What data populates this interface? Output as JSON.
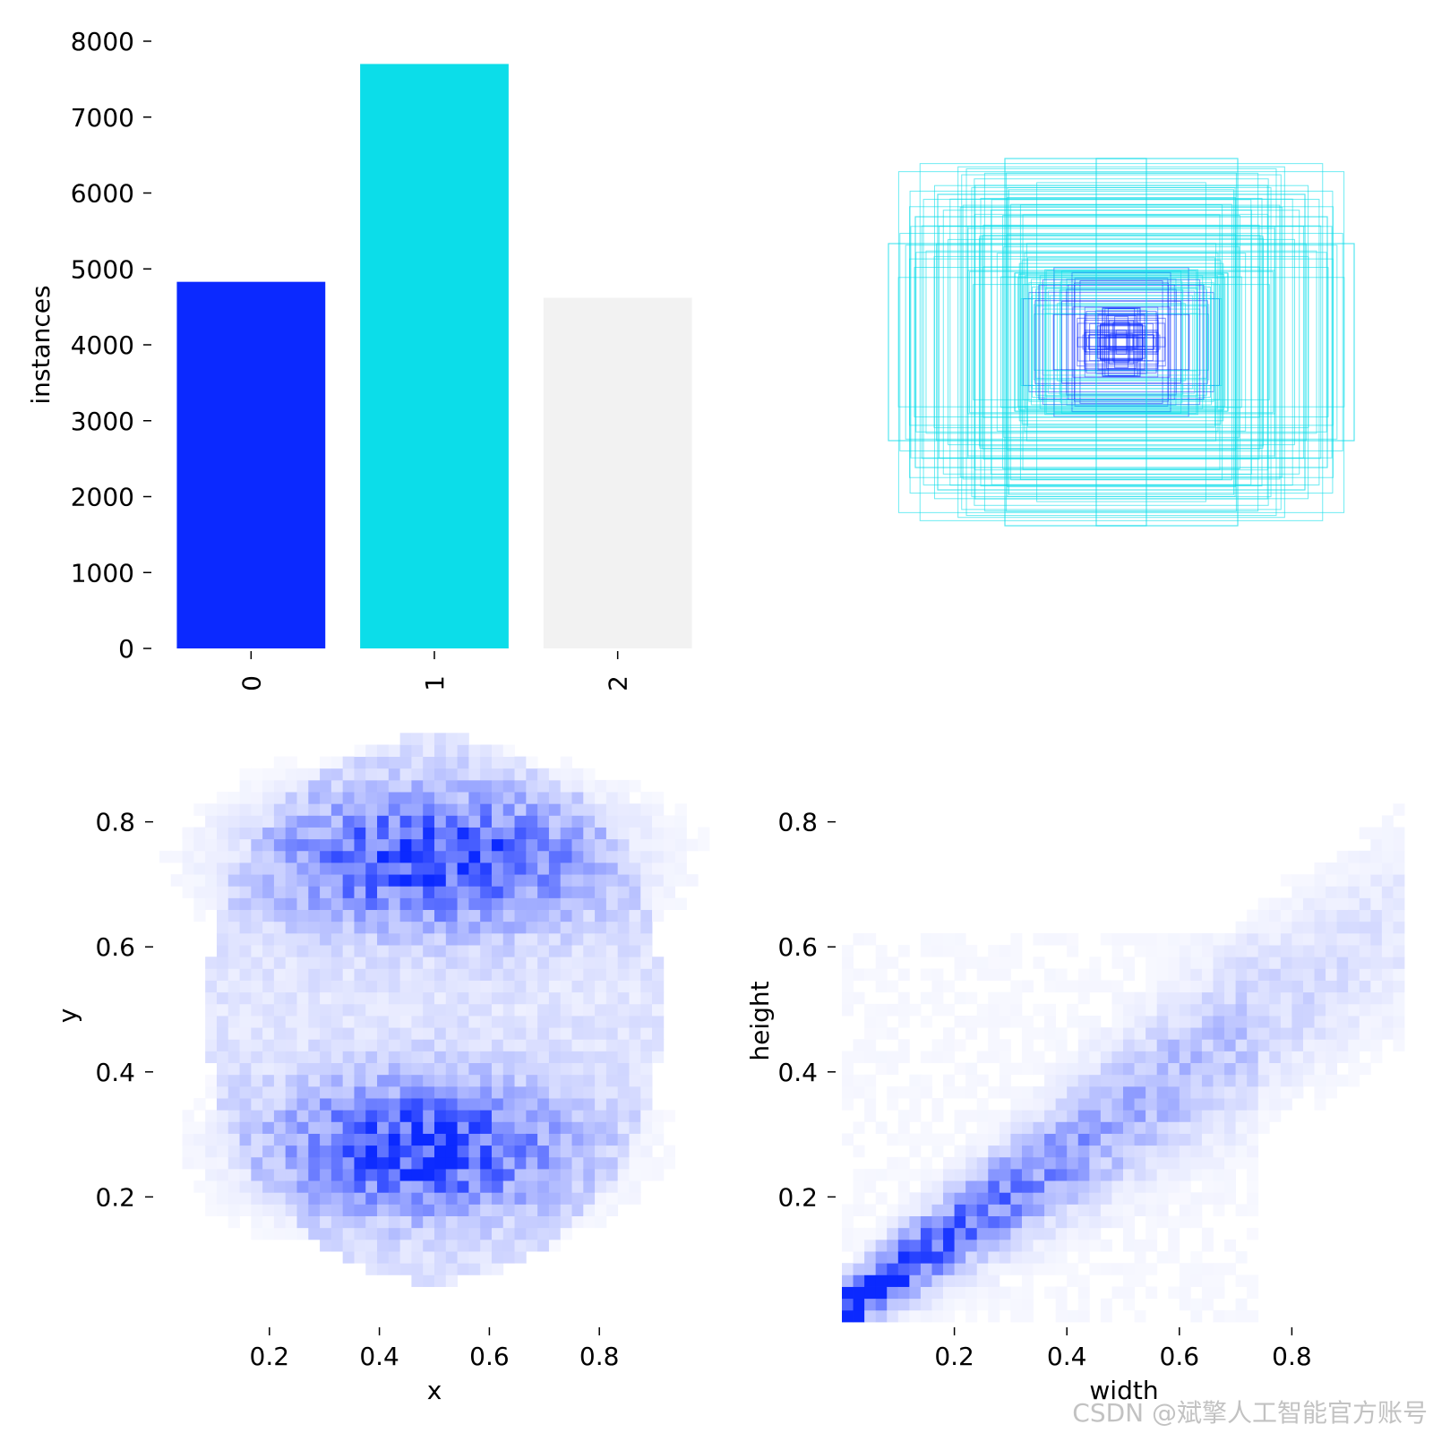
{
  "chart_data": [
    {
      "type": "bar",
      "categories": [
        "0",
        "1",
        "2"
      ],
      "values": [
        4830,
        7700,
        4620
      ],
      "colors": [
        "#0b29ff",
        "#0cdde9",
        "#f2f2f2"
      ],
      "ylabel": "instances",
      "yticks": [
        "0",
        "1000",
        "2000",
        "3000",
        "4000",
        "5000",
        "6000",
        "7000",
        "8000"
      ],
      "ylim": [
        0,
        8000
      ],
      "grid": false
    },
    {
      "type": "other",
      "description": "overlaid bounding-box rectangles centred at one point, cyan outlines with blue small boxes",
      "colors": [
        "#0cdde9",
        "#0b29ff"
      ]
    },
    {
      "type": "heatmap",
      "xlabel": "x",
      "ylabel": "y",
      "xticks": [
        "0.2",
        "0.4",
        "0.6",
        "0.8"
      ],
      "yticks": [
        "0.2",
        "0.4",
        "0.6",
        "0.8"
      ],
      "xlim": [
        0.0,
        1.0
      ],
      "ylim": [
        0.0,
        0.98
      ],
      "color": "#0b29ff",
      "density_centers": [
        {
          "x": 0.5,
          "y": 0.74,
          "spread_x": 0.22,
          "spread_y": 0.08
        },
        {
          "x": 0.48,
          "y": 0.28,
          "spread_x": 0.2,
          "spread_y": 0.08
        }
      ]
    },
    {
      "type": "heatmap",
      "xlabel": "width",
      "ylabel": "height",
      "xticks": [
        "0.2",
        "0.4",
        "0.6",
        "0.8"
      ],
      "yticks": [
        "0.2",
        "0.4",
        "0.6",
        "0.8"
      ],
      "xlim": [
        0.0,
        1.0
      ],
      "ylim": [
        0.0,
        0.98
      ],
      "color": "#0b29ff",
      "density_trend": "height increases with width, densest near origin"
    }
  ],
  "watermark": "CSDN @斌擎人工智能官方账号"
}
